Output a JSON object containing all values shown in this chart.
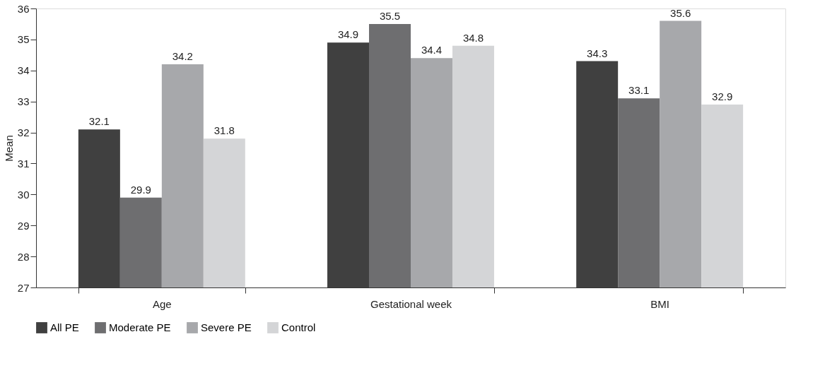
{
  "chart_data": {
    "type": "bar",
    "ylabel": "Mean",
    "categories": [
      "Age",
      "Gestational week",
      "BMI"
    ],
    "series": [
      {
        "name": "All PE",
        "color": "#404040",
        "values": [
          32.1,
          34.9,
          34.3
        ]
      },
      {
        "name": "Moderate PE",
        "color": "#6e6e70",
        "values": [
          29.9,
          35.5,
          33.1
        ]
      },
      {
        "name": "Severe PE",
        "color": "#a7a8ab",
        "values": [
          34.2,
          34.4,
          35.6
        ]
      },
      {
        "name": "Control",
        "color": "#d4d5d7",
        "values": [
          31.8,
          34.8,
          32.9
        ]
      }
    ],
    "ylim": [
      27,
      36
    ],
    "yticks": [
      27,
      28,
      29,
      30,
      31,
      32,
      33,
      34,
      35,
      36
    ],
    "grid": false,
    "legend": "bottom",
    "data_labels": true
  }
}
